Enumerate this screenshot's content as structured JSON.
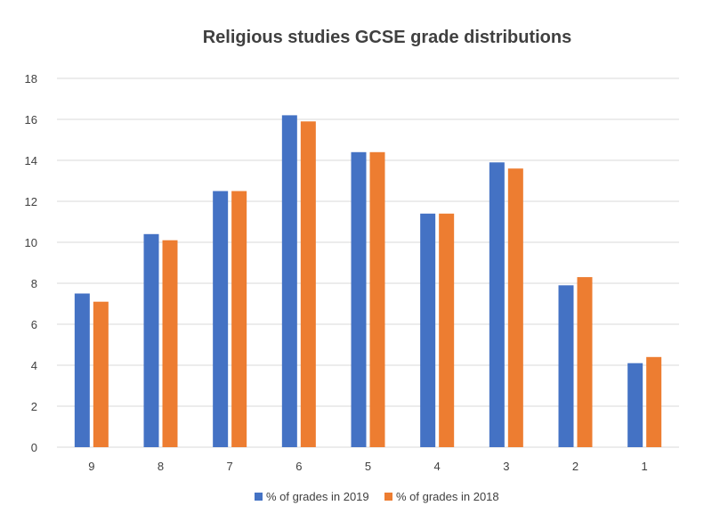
{
  "chart_data": {
    "type": "bar",
    "title": "Religious studies GCSE grade distributions",
    "xlabel": "",
    "ylabel": "",
    "categories": [
      "9",
      "8",
      "7",
      "6",
      "5",
      "4",
      "3",
      "2",
      "1"
    ],
    "series": [
      {
        "name": "% of grades in 2019",
        "color": "#4472C4",
        "values": [
          7.5,
          10.4,
          12.5,
          16.2,
          14.4,
          11.4,
          13.9,
          7.9,
          4.1
        ]
      },
      {
        "name": "% of grades in 2018",
        "color": "#ED7D31",
        "values": [
          7.1,
          10.1,
          12.5,
          15.9,
          14.4,
          11.4,
          13.6,
          8.3,
          4.4
        ]
      }
    ],
    "ylim": [
      0,
      18
    ],
    "yticks": [
      0,
      2,
      4,
      6,
      8,
      10,
      12,
      14,
      16,
      18
    ],
    "grid": true,
    "legend_position": "bottom"
  }
}
